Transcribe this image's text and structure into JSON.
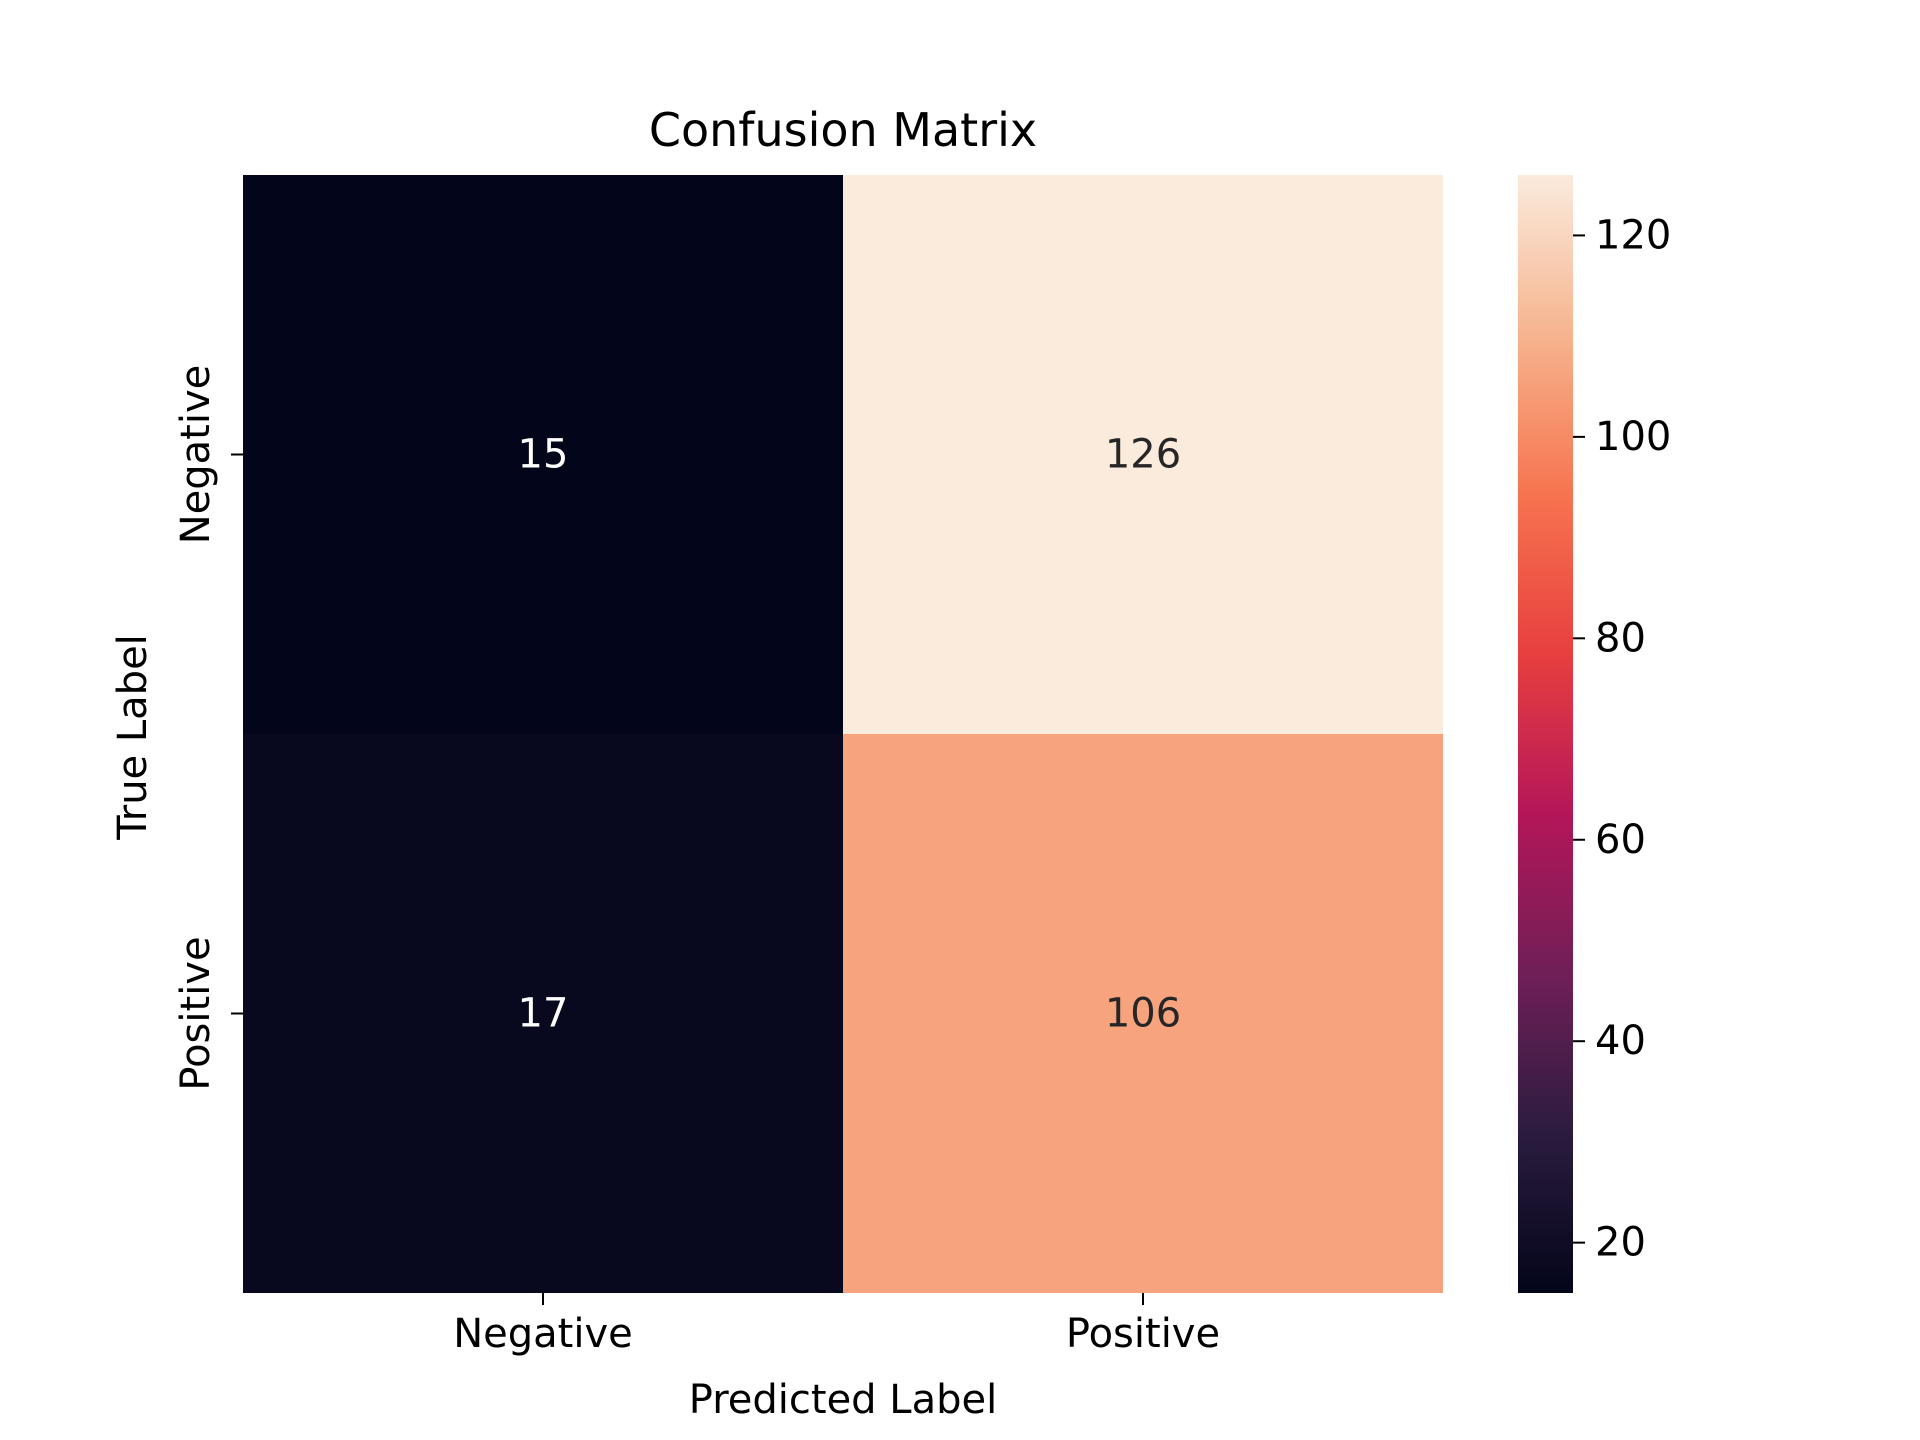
{
  "chart_data": {
    "type": "heatmap",
    "title": "Confusion Matrix",
    "xlabel": "Predicted Label",
    "ylabel": "True Label",
    "x_categories": [
      "Negative",
      "Positive"
    ],
    "y_categories": [
      "Negative",
      "Positive"
    ],
    "values": [
      [
        15,
        126
      ],
      [
        17,
        106
      ]
    ],
    "colorbar": {
      "range": [
        15,
        126
      ],
      "ticks": [
        20,
        40,
        60,
        80,
        100,
        120
      ]
    },
    "colormap": [
      "#03051a",
      "#2b1c3e",
      "#701f57",
      "#b41658",
      "#e83f3f",
      "#f6744f",
      "#f6b48e",
      "#faebdd"
    ],
    "annotation_colors": {
      "on_dark": "#ffffff",
      "on_light": "#262626"
    },
    "grid": false
  }
}
